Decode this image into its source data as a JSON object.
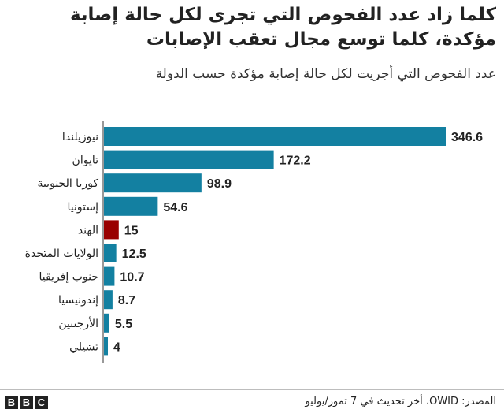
{
  "title": "كلما زاد عدد الفحوص التي تجرى  لكل حالة إصابة مؤكدة، كلما توسع مجال تعقب الإصابات",
  "subtitle": "عدد الفحوص التي أجريت لكل حالة إصابة مؤكدة حسب الدولة",
  "source": "المصدر: OWID، أخر تحديث في 7 تموز/يوليو",
  "logo": [
    "B",
    "B",
    "C"
  ],
  "colors": {
    "bar": "#1380a1",
    "highlight": "#990000",
    "axis": "#333333"
  },
  "chart_data": {
    "type": "bar",
    "orientation": "horizontal",
    "categories": [
      "نيوزيلندا",
      "تايوان",
      "كوريا الجنوبية",
      "إستونيا",
      "الهند",
      "الولايات المتحدة",
      "جنوب إفريقيا",
      "إندونيسيا",
      "الأرجنتين",
      "تشيلي"
    ],
    "values": [
      346.6,
      172.2,
      98.9,
      54.6,
      15,
      12.5,
      10.7,
      8.7,
      5.5,
      4
    ],
    "value_labels": [
      "346.6",
      "172.2",
      "98.9",
      "54.6",
      "15",
      "12.5",
      "10.7",
      "8.7",
      "5.5",
      "4"
    ],
    "highlight": "الهند",
    "xlim": [
      0,
      346.6
    ]
  }
}
